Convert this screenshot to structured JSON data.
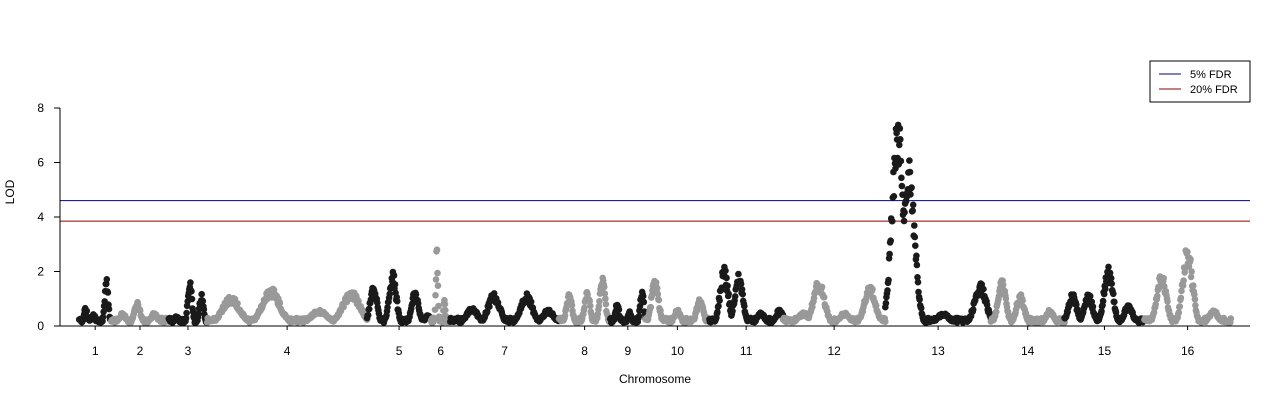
{
  "chart_data": {
    "type": "scatter",
    "title": "",
    "xlabel": "Chromosome",
    "ylabel": "LOD",
    "ylim": [
      0,
      8
    ],
    "y_ticks": [
      "0",
      "2",
      "4",
      "6",
      "8"
    ],
    "grid": false,
    "legend_position": "top-right",
    "chromosomes": [
      {
        "label": "1",
        "start": 0.0,
        "end": 1.0,
        "color": "#1a1a1a",
        "peaks": [
          [
            0.2,
            0.7
          ],
          [
            0.45,
            0.5
          ],
          [
            0.85,
            1.8
          ]
        ]
      },
      {
        "label": "2",
        "start": 1.0,
        "end": 2.8,
        "color": "#999999",
        "peaks": [
          [
            0.2,
            0.5
          ],
          [
            0.45,
            0.9
          ],
          [
            0.75,
            0.5
          ]
        ]
      },
      {
        "label": "3",
        "start": 2.8,
        "end": 4.0,
        "color": "#1a1a1a",
        "peaks": [
          [
            0.2,
            0.4
          ],
          [
            0.55,
            1.7
          ],
          [
            0.85,
            1.2
          ]
        ]
      },
      {
        "label": "4",
        "start": 4.0,
        "end": 9.0,
        "color": "#999999",
        "peaks": [
          [
            0.15,
            1.1
          ],
          [
            0.4,
            1.4
          ],
          [
            0.7,
            0.6
          ],
          [
            0.9,
            1.3
          ]
        ]
      },
      {
        "label": "5",
        "start": 9.0,
        "end": 11.0,
        "color": "#1a1a1a",
        "peaks": [
          [
            0.1,
            1.5
          ],
          [
            0.4,
            2.0
          ],
          [
            0.75,
            1.3
          ],
          [
            0.95,
            0.4
          ]
        ]
      },
      {
        "label": "6",
        "start": 11.0,
        "end": 11.6,
        "color": "#999999",
        "peaks": [
          [
            0.3,
            2.9
          ],
          [
            0.7,
            1.0
          ]
        ]
      },
      {
        "label": "7",
        "start": 11.6,
        "end": 15.0,
        "color": "#1a1a1a",
        "peaks": [
          [
            0.2,
            0.7
          ],
          [
            0.4,
            1.2
          ],
          [
            0.7,
            1.2
          ],
          [
            0.9,
            0.6
          ]
        ]
      },
      {
        "label": "8",
        "start": 15.0,
        "end": 16.6,
        "color": "#999999",
        "peaks": [
          [
            0.2,
            1.3
          ],
          [
            0.55,
            1.4
          ],
          [
            0.85,
            1.8
          ]
        ]
      },
      {
        "label": "9",
        "start": 16.6,
        "end": 17.7,
        "color": "#1a1a1a",
        "peaks": [
          [
            0.2,
            0.9
          ],
          [
            0.55,
            0.6
          ],
          [
            0.9,
            1.4
          ]
        ]
      },
      {
        "label": "10",
        "start": 17.7,
        "end": 19.7,
        "color": "#999999",
        "peaks": [
          [
            0.15,
            1.8
          ],
          [
            0.5,
            0.6
          ],
          [
            0.85,
            1.0
          ]
        ]
      },
      {
        "label": "11",
        "start": 19.7,
        "end": 22.0,
        "color": "#1a1a1a",
        "peaks": [
          [
            0.2,
            2.2
          ],
          [
            0.4,
            2.0
          ],
          [
            0.7,
            0.5
          ],
          [
            0.95,
            0.6
          ]
        ]
      },
      {
        "label": "12",
        "start": 22.0,
        "end": 25.2,
        "color": "#999999",
        "peaks": [
          [
            0.2,
            0.5
          ],
          [
            0.35,
            1.7
          ],
          [
            0.6,
            0.5
          ],
          [
            0.85,
            1.5
          ]
        ]
      },
      {
        "label": "13",
        "start": 25.2,
        "end": 28.5,
        "color": "#1a1a1a",
        "peaks": [
          [
            0.12,
            7.7
          ],
          [
            0.22,
            6.3
          ],
          [
            0.55,
            0.5
          ],
          [
            0.9,
            1.6
          ]
        ]
      },
      {
        "label": "14",
        "start": 28.5,
        "end": 30.8,
        "color": "#999999",
        "peaks": [
          [
            0.15,
            1.7
          ],
          [
            0.4,
            1.2
          ],
          [
            0.8,
            0.6
          ]
        ]
      },
      {
        "label": "15",
        "start": 30.8,
        "end": 33.3,
        "color": "#1a1a1a",
        "peaks": [
          [
            0.1,
            1.2
          ],
          [
            0.3,
            1.2
          ],
          [
            0.55,
            2.2
          ],
          [
            0.8,
            0.8
          ]
        ]
      },
      {
        "label": "16",
        "start": 33.3,
        "end": 36.0,
        "color": "#999999",
        "peaks": [
          [
            0.2,
            2.0
          ],
          [
            0.5,
            3.0
          ],
          [
            0.8,
            0.6
          ]
        ]
      }
    ],
    "thresholds": [
      {
        "name": "5% FDR",
        "value": 4.6,
        "color": "#00008b"
      },
      {
        "name": "20% FDR",
        "value": 3.85,
        "color": "#8b0000"
      }
    ],
    "x_range": [
      -0.6,
      36.6
    ]
  }
}
